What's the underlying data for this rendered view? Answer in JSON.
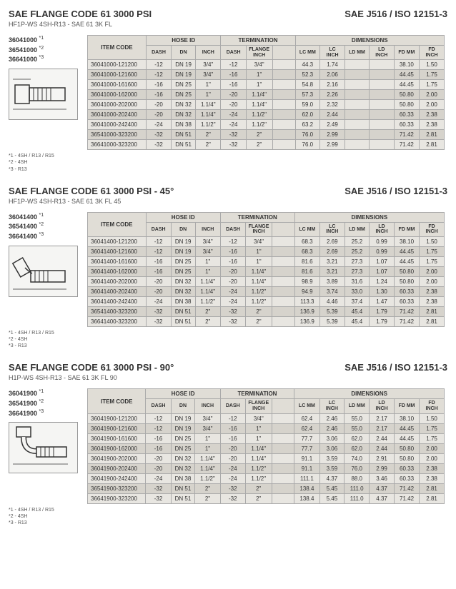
{
  "sections": [
    {
      "title": "SAE FLANGE CODE 61 3000 PSI",
      "subtitle": "HF1P-WS 4SH-R13 - SAE 61 3K FL",
      "std": "SAE J516 / ISO 12151-3",
      "codes": [
        "36041000",
        "36541000",
        "36641000"
      ],
      "sups": [
        "*1",
        "*2",
        "*3"
      ],
      "rows": [
        {
          "c": "36041000-121200",
          "d": "-12",
          "dn": "DN 19",
          "in": "3/4\"",
          "td": "-12",
          "fl": "3/4\"",
          "lcm": "44.3",
          "lci": "1.74",
          "ldm": "",
          "ldi": "",
          "fdm": "38.10",
          "fdi": "1.50"
        },
        {
          "c": "36041000-121600",
          "d": "-12",
          "dn": "DN 19",
          "in": "3/4\"",
          "td": "-16",
          "fl": "1\"",
          "lcm": "52.3",
          "lci": "2.06",
          "ldm": "",
          "ldi": "",
          "fdm": "44.45",
          "fdi": "1.75"
        },
        {
          "c": "36041000-161600",
          "d": "-16",
          "dn": "DN 25",
          "in": "1\"",
          "td": "-16",
          "fl": "1\"",
          "lcm": "54.8",
          "lci": "2.16",
          "ldm": "",
          "ldi": "",
          "fdm": "44.45",
          "fdi": "1.75"
        },
        {
          "c": "36041000-162000",
          "d": "-16",
          "dn": "DN 25",
          "in": "1\"",
          "td": "-20",
          "fl": "1.1/4\"",
          "lcm": "57.3",
          "lci": "2.26",
          "ldm": "",
          "ldi": "",
          "fdm": "50.80",
          "fdi": "2.00"
        },
        {
          "c": "36041000-202000",
          "d": "-20",
          "dn": "DN 32",
          "in": "1.1/4\"",
          "td": "-20",
          "fl": "1.1/4\"",
          "lcm": "59.0",
          "lci": "2.32",
          "ldm": "",
          "ldi": "",
          "fdm": "50.80",
          "fdi": "2.00"
        },
        {
          "c": "36041000-202400",
          "d": "-20",
          "dn": "DN 32",
          "in": "1.1/4\"",
          "td": "-24",
          "fl": "1.1/2\"",
          "lcm": "62.0",
          "lci": "2.44",
          "ldm": "",
          "ldi": "",
          "fdm": "60.33",
          "fdi": "2.38"
        },
        {
          "c": "36041000-242400",
          "d": "-24",
          "dn": "DN 38",
          "in": "1.1/2\"",
          "td": "-24",
          "fl": "1.1/2\"",
          "lcm": "63.2",
          "lci": "2.49",
          "ldm": "",
          "ldi": "",
          "fdm": "60.33",
          "fdi": "2.38"
        },
        {
          "c": "36541000-323200",
          "d": "-32",
          "dn": "DN 51",
          "in": "2\"",
          "td": "-32",
          "fl": "2\"",
          "lcm": "76.0",
          "lci": "2.99",
          "ldm": "",
          "ldi": "",
          "fdm": "71.42",
          "fdi": "2.81"
        },
        {
          "c": "36641000-323200",
          "d": "-32",
          "dn": "DN 51",
          "in": "2\"",
          "td": "-32",
          "fl": "2\"",
          "lcm": "76.0",
          "lci": "2.99",
          "ldm": "",
          "ldi": "",
          "fdm": "71.42",
          "fdi": "2.81"
        }
      ],
      "footnotes": [
        "*1 - 4SH / R13 / R15",
        "*2 - 4SH",
        "*3 - R13"
      ]
    },
    {
      "title": "SAE FLANGE CODE 61 3000 PSI - 45°",
      "subtitle": "HF1P-WS 4SH-R13 - SAE 61 3K FL 45",
      "std": "SAE J516 / ISO 12151-3",
      "codes": [
        "36041400",
        "36541400",
        "36641400"
      ],
      "sups": [
        "*1",
        "*2",
        "*3"
      ],
      "rows": [
        {
          "c": "36041400-121200",
          "d": "-12",
          "dn": "DN 19",
          "in": "3/4\"",
          "td": "-12",
          "fl": "3/4\"",
          "lcm": "68.3",
          "lci": "2.69",
          "ldm": "25.2",
          "ldi": "0.99",
          "fdm": "38.10",
          "fdi": "1.50"
        },
        {
          "c": "36041400-121600",
          "d": "-12",
          "dn": "DN 19",
          "in": "3/4\"",
          "td": "-16",
          "fl": "1\"",
          "lcm": "68.3",
          "lci": "2.69",
          "ldm": "25.2",
          "ldi": "0.99",
          "fdm": "44.45",
          "fdi": "1.75"
        },
        {
          "c": "36041400-161600",
          "d": "-16",
          "dn": "DN 25",
          "in": "1\"",
          "td": "-16",
          "fl": "1\"",
          "lcm": "81.6",
          "lci": "3.21",
          "ldm": "27.3",
          "ldi": "1.07",
          "fdm": "44.45",
          "fdi": "1.75"
        },
        {
          "c": "36041400-162000",
          "d": "-16",
          "dn": "DN 25",
          "in": "1\"",
          "td": "-20",
          "fl": "1.1/4\"",
          "lcm": "81.6",
          "lci": "3.21",
          "ldm": "27.3",
          "ldi": "1.07",
          "fdm": "50.80",
          "fdi": "2.00"
        },
        {
          "c": "36041400-202000",
          "d": "-20",
          "dn": "DN 32",
          "in": "1.1/4\"",
          "td": "-20",
          "fl": "1.1/4\"",
          "lcm": "98.9",
          "lci": "3.89",
          "ldm": "31.6",
          "ldi": "1.24",
          "fdm": "50.80",
          "fdi": "2.00"
        },
        {
          "c": "36041400-202400",
          "d": "-20",
          "dn": "DN 32",
          "in": "1.1/4\"",
          "td": "-24",
          "fl": "1.1/2\"",
          "lcm": "94.9",
          "lci": "3.74",
          "ldm": "33.0",
          "ldi": "1.30",
          "fdm": "60.33",
          "fdi": "2.38"
        },
        {
          "c": "36041400-242400",
          "d": "-24",
          "dn": "DN 38",
          "in": "1.1/2\"",
          "td": "-24",
          "fl": "1.1/2\"",
          "lcm": "113.3",
          "lci": "4.46",
          "ldm": "37.4",
          "ldi": "1.47",
          "fdm": "60.33",
          "fdi": "2.38"
        },
        {
          "c": "36541400-323200",
          "d": "-32",
          "dn": "DN 51",
          "in": "2\"",
          "td": "-32",
          "fl": "2\"",
          "lcm": "136.9",
          "lci": "5.39",
          "ldm": "45.4",
          "ldi": "1.79",
          "fdm": "71.42",
          "fdi": "2.81"
        },
        {
          "c": "36641400-323200",
          "d": "-32",
          "dn": "DN 51",
          "in": "2\"",
          "td": "-32",
          "fl": "2\"",
          "lcm": "136.9",
          "lci": "5.39",
          "ldm": "45.4",
          "ldi": "1.79",
          "fdm": "71.42",
          "fdi": "2.81"
        }
      ],
      "footnotes": [
        "*1 - 4SH / R13 / R15",
        "*2 - 4SH",
        "*3 - R13"
      ]
    },
    {
      "title": "SAE FLANGE CODE 61 3000 PSI - 90°",
      "subtitle": "H1P-WS 4SH-R13 - SAE 61 3K FL 90",
      "std": "SAE J516 / ISO 12151-3",
      "codes": [
        "36041900",
        "36541900",
        "36641900"
      ],
      "sups": [
        "*1",
        "*2",
        "*3"
      ],
      "rows": [
        {
          "c": "36041900-121200",
          "d": "-12",
          "dn": "DN 19",
          "in": "3/4\"",
          "td": "-12",
          "fl": "3/4\"",
          "lcm": "62.4",
          "lci": "2.46",
          "ldm": "55.0",
          "ldi": "2.17",
          "fdm": "38.10",
          "fdi": "1.50"
        },
        {
          "c": "36041900-121600",
          "d": "-12",
          "dn": "DN 19",
          "in": "3/4\"",
          "td": "-16",
          "fl": "1\"",
          "lcm": "62.4",
          "lci": "2.46",
          "ldm": "55.0",
          "ldi": "2.17",
          "fdm": "44.45",
          "fdi": "1.75"
        },
        {
          "c": "36041900-161600",
          "d": "-16",
          "dn": "DN 25",
          "in": "1\"",
          "td": "-16",
          "fl": "1\"",
          "lcm": "77.7",
          "lci": "3.06",
          "ldm": "62.0",
          "ldi": "2.44",
          "fdm": "44.45",
          "fdi": "1.75"
        },
        {
          "c": "36041900-162000",
          "d": "-16",
          "dn": "DN 25",
          "in": "1\"",
          "td": "-20",
          "fl": "1.1/4\"",
          "lcm": "77.7",
          "lci": "3.06",
          "ldm": "62.0",
          "ldi": "2.44",
          "fdm": "50.80",
          "fdi": "2.00"
        },
        {
          "c": "36041900-202000",
          "d": "-20",
          "dn": "DN 32",
          "in": "1.1/4\"",
          "td": "-20",
          "fl": "1.1/4\"",
          "lcm": "91.1",
          "lci": "3.59",
          "ldm": "74.0",
          "ldi": "2.91",
          "fdm": "50.80",
          "fdi": "2.00"
        },
        {
          "c": "36041900-202400",
          "d": "-20",
          "dn": "DN 32",
          "in": "1.1/4\"",
          "td": "-24",
          "fl": "1.1/2\"",
          "lcm": "91.1",
          "lci": "3.59",
          "ldm": "76.0",
          "ldi": "2.99",
          "fdm": "60.33",
          "fdi": "2.38"
        },
        {
          "c": "36041900-242400",
          "d": "-24",
          "dn": "DN 38",
          "in": "1.1/2\"",
          "td": "-24",
          "fl": "1.1/2\"",
          "lcm": "111.1",
          "lci": "4.37",
          "ldm": "88.0",
          "ldi": "3.46",
          "fdm": "60.33",
          "fdi": "2.38"
        },
        {
          "c": "36541900-323200",
          "d": "-32",
          "dn": "DN 51",
          "in": "2\"",
          "td": "-32",
          "fl": "2\"",
          "lcm": "138.4",
          "lci": "5.45",
          "ldm": "111.0",
          "ldi": "4.37",
          "fdm": "71.42",
          "fdi": "2.81"
        },
        {
          "c": "36641900-323200",
          "d": "-32",
          "dn": "DN 51",
          "in": "2\"",
          "td": "-32",
          "fl": "2\"",
          "lcm": "138.4",
          "lci": "5.45",
          "ldm": "111.0",
          "ldi": "4.37",
          "fdm": "71.42",
          "fdi": "2.81"
        }
      ],
      "footnotes": [
        "*1 - 4SH / R13 / R15",
        "*2 - 4SH",
        "*3 - R13"
      ]
    }
  ],
  "headers": {
    "item": "ITEM CODE",
    "hose": "HOSE ID",
    "term": "TERMINATION",
    "dims": "DIMENSIONS",
    "dash": "DASH",
    "dn": "DN",
    "inch": "INCH",
    "flange": "FLANGE\nINCH",
    "lcm": "LC\nMM",
    "lci": "LC\nINCH",
    "ldm": "LD\nMM",
    "ldi": "LD\nINCH",
    "fdm": "FD\nMM",
    "fdi": "FD\nINCH"
  },
  "diagrams": [
    {
      "type": "straight"
    },
    {
      "type": "45"
    },
    {
      "type": "90"
    }
  ]
}
